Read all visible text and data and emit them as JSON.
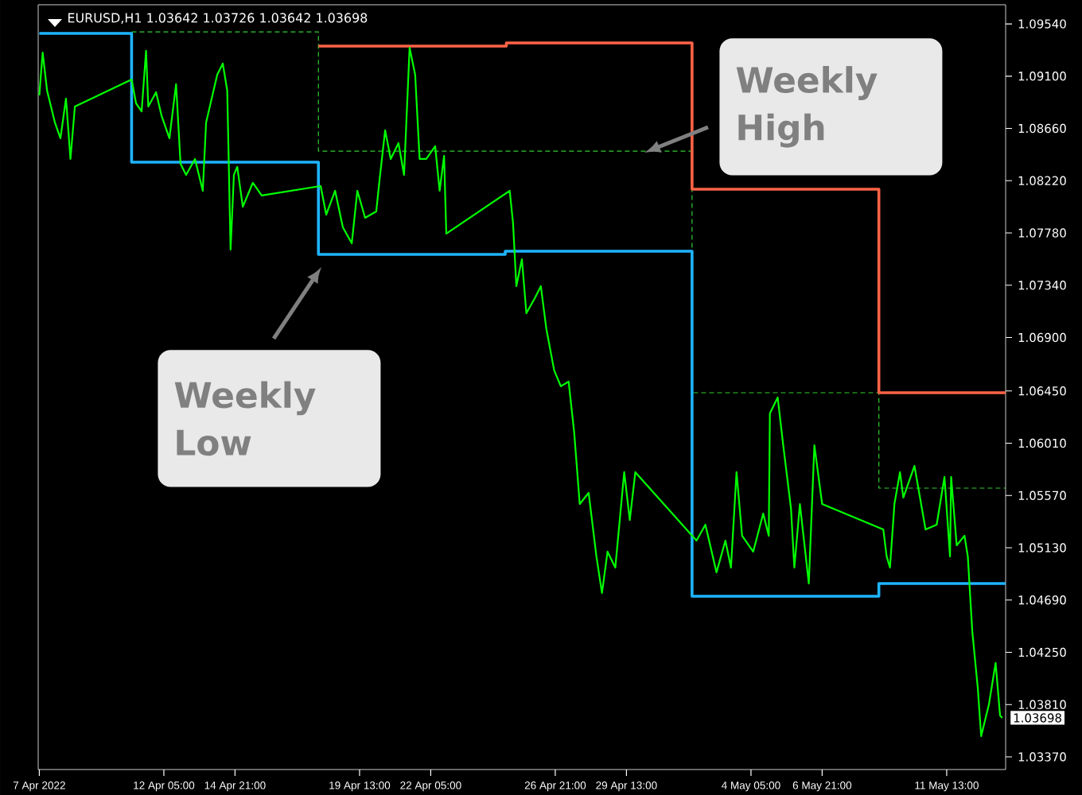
{
  "chart_data": {
    "type": "line",
    "title": "EURUSD,H1  1.03642 1.03726 1.03642 1.03698",
    "annotations": [
      "Weekly High",
      "Weekly Low",
      {
        "text": "1.03698",
        "x": "2022-05-13T15:00",
        "y": 1.03698
      }
    ],
    "xlim": [
      "2022-04-07T12:00",
      "2022-05-13T18:00"
    ],
    "ylim": [
      1.03263,
      1.09701
    ],
    "xticks": [
      {
        "value": "2022-04-07T13:00",
        "label": "7 Apr 2022"
      },
      {
        "value": "2022-04-12T05:00",
        "label": "12 Apr 05:00"
      },
      {
        "value": "2022-04-14T21:00",
        "label": "14 Apr 21:00"
      },
      {
        "value": "2022-04-19T13:00",
        "label": "19 Apr 13:00"
      },
      {
        "value": "2022-04-22T05:00",
        "label": "22 Apr 05:00"
      },
      {
        "value": "2022-04-26T21:00",
        "label": "26 Apr 21:00"
      },
      {
        "value": "2022-04-29T13:00",
        "label": "29 Apr 13:00"
      },
      {
        "value": "2022-05-04T05:00",
        "label": "4 May 05:00"
      },
      {
        "value": "2022-05-06T21:00",
        "label": "6 May 21:00"
      },
      {
        "value": "2022-05-11T13:00",
        "label": "11 May 13:00"
      }
    ],
    "yticks": [
      {
        "value": 1.0954,
        "label": "1.09540"
      },
      {
        "value": 1.091,
        "label": "1.09100"
      },
      {
        "value": 1.0866,
        "label": "1.08660"
      },
      {
        "value": 1.0822,
        "label": "1.08220"
      },
      {
        "value": 1.0778,
        "label": "1.07780"
      },
      {
        "value": 1.0734,
        "label": "1.07340"
      },
      {
        "value": 1.069,
        "label": "1.06900"
      },
      {
        "value": 1.0645,
        "label": "1.06450"
      },
      {
        "value": 1.0601,
        "label": "1.06010"
      },
      {
        "value": 1.0557,
        "label": "1.05570"
      },
      {
        "value": 1.0513,
        "label": "1.05130"
      },
      {
        "value": 1.0469,
        "label": "1.04690"
      },
      {
        "value": 1.0425,
        "label": "1.04250"
      },
      {
        "value": 1.0381,
        "label": "1.03810"
      },
      {
        "value": 1.0337,
        "label": "1.03370"
      }
    ],
    "series": [
      {
        "type": "step",
        "color": "#32cd32",
        "line_style": "dashed",
        "x": [
          "2022-04-11T00:00",
          "2022-04-18T00:00",
          "2022-05-02T00:00",
          "2022-05-09T00:00",
          "2022-05-13T18:00"
        ],
        "values": [
          1.09473,
          1.08469,
          1.06435,
          1.05632,
          1.05632
        ]
      },
      {
        "type": "step",
        "color": "#ff6347",
        "x": [
          "2022-04-18T00:00",
          "2022-04-25T01:00",
          "2022-05-02T00:00",
          "2022-05-09T00:00",
          "2022-05-13T18:00"
        ],
        "values": [
          1.09353,
          1.0938,
          1.08148,
          1.06435,
          1.06435
        ]
      },
      {
        "type": "step",
        "color": "#1eb4ff",
        "x": [
          "2022-04-07T13:00",
          "2022-04-11T00:00",
          "2022-04-18T00:00",
          "2022-04-25T00:00",
          "2022-05-02T00:00",
          "2022-05-09T00:00",
          "2022-05-13T18:00"
        ],
        "values": [
          1.0946,
          1.08376,
          1.07599,
          1.07626,
          1.04722,
          1.04829,
          1.04829
        ]
      },
      {
        "type": "line",
        "color": "#00ff00",
        "x": [
          "2022-04-07T13:00",
          "2022-04-07T16:00",
          "2022-04-07T20:00",
          "2022-04-08T03:00",
          "2022-04-08T08:00",
          "2022-04-08T13:00",
          "2022-04-08T17:00",
          "2022-04-08T21:00",
          "2022-04-11T00:00",
          "2022-04-11T04:00",
          "2022-04-11T09:00",
          "2022-04-11T13:00",
          "2022-04-11T15:00",
          "2022-04-11T22:00",
          "2022-04-12T03:00",
          "2022-04-12T10:00",
          "2022-04-12T16:00",
          "2022-04-12T20:00",
          "2022-04-13T01:00",
          "2022-04-13T09:00",
          "2022-04-13T16:00",
          "2022-04-13T19:00",
          "2022-04-14T00:00",
          "2022-04-14T05:00",
          "2022-04-14T10:00",
          "2022-04-14T14:00",
          "2022-04-14T17:00",
          "2022-04-14T20:00",
          "2022-04-14T23:00",
          "2022-04-15T04:00",
          "2022-04-15T13:00",
          "2022-04-15T21:00",
          "2022-04-18T02:00",
          "2022-04-18T07:00",
          "2022-04-18T15:00",
          "2022-04-18T22:00",
          "2022-04-19T06:00",
          "2022-04-19T11:00",
          "2022-04-19T18:00",
          "2022-04-20T04:00",
          "2022-04-20T07:00",
          "2022-04-20T12:00",
          "2022-04-20T17:00",
          "2022-04-21T00:00",
          "2022-04-21T05:00",
          "2022-04-21T10:00",
          "2022-04-21T15:00",
          "2022-04-21T19:00",
          "2022-04-22T01:00",
          "2022-04-22T09:00",
          "2022-04-22T13:00",
          "2022-04-22T17:00",
          "2022-04-22T19:00",
          "2022-04-25T04:00",
          "2022-04-25T07:00",
          "2022-04-25T10:00",
          "2022-04-25T15:00",
          "2022-04-25T19:00",
          "2022-04-26T03:00",
          "2022-04-26T08:00",
          "2022-04-26T13:00",
          "2022-04-26T20:00",
          "2022-04-27T02:00",
          "2022-04-27T09:00",
          "2022-04-27T14:00",
          "2022-04-27T19:00",
          "2022-04-28T03:00",
          "2022-04-28T10:00",
          "2022-04-28T15:00",
          "2022-04-28T20:00",
          "2022-04-29T03:00",
          "2022-04-29T11:00",
          "2022-04-29T16:00",
          "2022-04-29T21:00",
          "2022-05-02T04:00",
          "2022-05-02T12:00",
          "2022-05-02T22:00",
          "2022-05-03T06:00",
          "2022-05-03T11:00",
          "2022-05-03T16:00",
          "2022-05-03T21:00",
          "2022-05-04T07:00",
          "2022-05-04T16:00",
          "2022-05-04T21:00",
          "2022-05-04T22:00",
          "2022-05-05T05:00",
          "2022-05-05T10:00",
          "2022-05-05T17:00",
          "2022-05-05T20:00",
          "2022-05-06T01:00",
          "2022-05-06T09:00",
          "2022-05-06T14:00",
          "2022-05-06T21:00",
          "2022-05-09T04:00",
          "2022-05-09T07:00",
          "2022-05-09T10:00",
          "2022-05-09T14:00",
          "2022-05-09T19:00",
          "2022-05-09T22:00",
          "2022-05-10T08:00",
          "2022-05-10T18:00",
          "2022-05-11T04:00",
          "2022-05-11T11:00",
          "2022-05-11T16:00",
          "2022-05-11T17:00",
          "2022-05-11T22:00",
          "2022-05-12T05:00",
          "2022-05-12T08:00",
          "2022-05-12T12:00",
          "2022-05-12T17:00",
          "2022-05-12T20:00",
          "2022-05-13T03:00",
          "2022-05-13T09:00",
          "2022-05-13T13:00",
          "2022-05-13T15:00"
        ],
        "values": [
          1.08938,
          1.09299,
          1.08978,
          1.0871,
          1.08577,
          1.08911,
          1.08403,
          1.08844,
          1.09072,
          1.08871,
          1.08804,
          1.09313,
          1.08844,
          1.08965,
          1.08764,
          1.08577,
          1.09032,
          1.08362,
          1.08269,
          1.08403,
          1.08135,
          1.0871,
          1.08911,
          1.09112,
          1.09206,
          1.08978,
          1.0764,
          1.08269,
          1.08336,
          1.08001,
          1.08202,
          1.08095,
          1.08175,
          1.07934,
          1.08135,
          1.07827,
          1.07693,
          1.08135,
          1.07907,
          1.07961,
          1.08229,
          1.08644,
          1.08403,
          1.08536,
          1.08269,
          1.09339,
          1.09112,
          1.08403,
          1.08403,
          1.0851,
          1.08135,
          1.08429,
          1.07774,
          1.08135,
          1.07867,
          1.07332,
          1.07559,
          1.07104,
          1.07238,
          1.07332,
          1.06971,
          1.06623,
          1.06489,
          1.06529,
          1.06101,
          1.05498,
          1.05592,
          1.05057,
          1.04749,
          1.05097,
          1.04963,
          1.05766,
          1.05364,
          1.05766,
          1.0519,
          1.05324,
          1.04923,
          1.0519,
          1.04963,
          1.05766,
          1.05231,
          1.05097,
          1.05418,
          1.05231,
          1.06261,
          1.06395,
          1.05993,
          1.05458,
          1.04963,
          1.05498,
          1.04829,
          1.05993,
          1.05498,
          1.05284,
          1.05057,
          1.04963,
          1.05498,
          1.05766,
          1.05552,
          1.05819,
          1.05284,
          1.05324,
          1.05726,
          1.05057,
          1.05726,
          1.0515,
          1.05231,
          1.05057,
          1.04428,
          1.03946,
          1.03544,
          1.03812,
          1.0416,
          1.03718,
          1.03698
        ]
      }
    ]
  }
}
